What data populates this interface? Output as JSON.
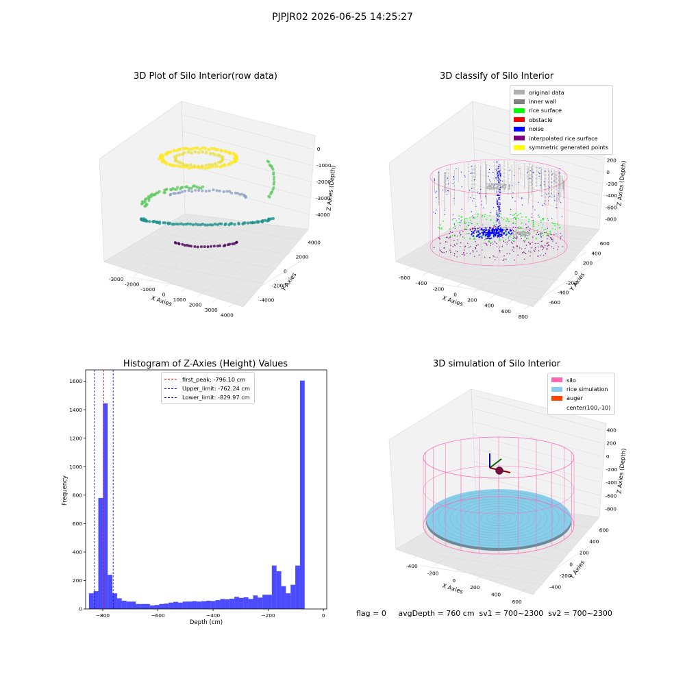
{
  "figure": {
    "suptitle": "PJPJR02 2026-06-25 14:25:27",
    "footer": "flag = 0     avgDepth = 760 cm  sv1 = 700~2300  sv2 = 700~2300"
  },
  "colors": {
    "viridis": [
      "#440154",
      "#3b528b",
      "#21918c",
      "#5ec962",
      "#fde725"
    ],
    "original": "#b0b0b0",
    "inner_wall": "#808080",
    "rice_surface": "#00ff00",
    "obstacle": "#ff0000",
    "noise": "#0000ff",
    "interpolated": "#800080",
    "symmetric": "#ffff00",
    "silo": "#ff69b4",
    "rice_sim": "#87ceeb",
    "auger": "#ff4500",
    "hist": "#0000ff",
    "peak_line": "#ff0000",
    "limit_line": "#0000ff"
  },
  "chart_data": [
    {
      "type": "scatter",
      "title": "3D Plot of Silo Interior(row data)",
      "xlabel": "X Axies",
      "ylabel": "Y Axies",
      "zlabel": "Z Axies (Depth)",
      "x_ticks": [
        "-3000",
        "-2000",
        "-1000",
        "0",
        "1000",
        "2000",
        "3000",
        "4000"
      ],
      "y_ticks": [
        "-4000",
        "-2000",
        "0",
        "2000",
        "4000"
      ],
      "z_ticks": [
        "0",
        "-1000",
        "-2000",
        "-3000",
        "-4000"
      ]
    },
    {
      "type": "scatter",
      "title": "3D classify of Silo Interior",
      "xlabel": "X Axies",
      "ylabel": "Y Axies",
      "zlabel": "Z Axies (Depth)",
      "x_ticks": [
        "-600",
        "-400",
        "-200",
        "0",
        "200",
        "400",
        "600",
        "800"
      ],
      "y_ticks": [
        "-600",
        "-400",
        "-200",
        "0",
        "200",
        "400",
        "600"
      ],
      "z_ticks": [
        "200",
        "0",
        "-200",
        "-400",
        "-600",
        "-800"
      ],
      "legend": [
        "original data",
        "inner wall",
        "rice surface",
        "obstacle",
        "noise",
        "interpolated rice surface",
        "symmetric generated points"
      ]
    },
    {
      "type": "bar",
      "title": "Histogram of Z-Axies (Height) Values",
      "xlabel": "Depth (cm)",
      "ylabel": "Frequency",
      "xlim": [
        -862,
        12
      ],
      "ylim": [
        0,
        1680
      ],
      "x_ticks": [
        -800,
        -600,
        -400,
        -200,
        0
      ],
      "y_ticks": [
        0,
        200,
        400,
        600,
        800,
        1000,
        1200,
        1400,
        1600
      ],
      "bin_width": 17,
      "bin_start": -850,
      "values": [
        110,
        125,
        780,
        1445,
        240,
        110,
        75,
        58,
        52,
        52,
        35,
        35,
        35,
        25,
        28,
        35,
        38,
        45,
        50,
        45,
        52,
        52,
        55,
        52,
        55,
        58,
        56,
        62,
        70,
        68,
        72,
        85,
        78,
        82,
        70,
        95,
        80,
        100,
        100,
        305,
        265,
        160,
        110,
        170,
        305,
        1605
      ],
      "lines": [
        {
          "label": "first_peak: -796.10 cm",
          "x": -796.1,
          "color": "red"
        },
        {
          "label": "Upper_limit: -762.24 cm",
          "x": -762.24,
          "color": "blue"
        },
        {
          "label": "Lower_limit: -829.97 cm",
          "x": -829.97,
          "color": "blue"
        }
      ]
    },
    {
      "type": "area",
      "title": "3D simulation of Silo Interior",
      "xlabel": "X Axies",
      "ylabel": "Y Axies",
      "zlabel": "Z Axies (Depth)",
      "x_ticks": [
        "-400",
        "-200",
        "0",
        "200",
        "400",
        "600"
      ],
      "y_ticks": [
        "-400",
        "-200",
        "0",
        "200",
        "400",
        "600"
      ],
      "z_ticks": [
        "400",
        "200",
        "0",
        "-200",
        "-400",
        "-600",
        "-800"
      ],
      "legend": [
        "silo",
        "rice simulation",
        "auger",
        "center(100,-10)"
      ]
    }
  ]
}
